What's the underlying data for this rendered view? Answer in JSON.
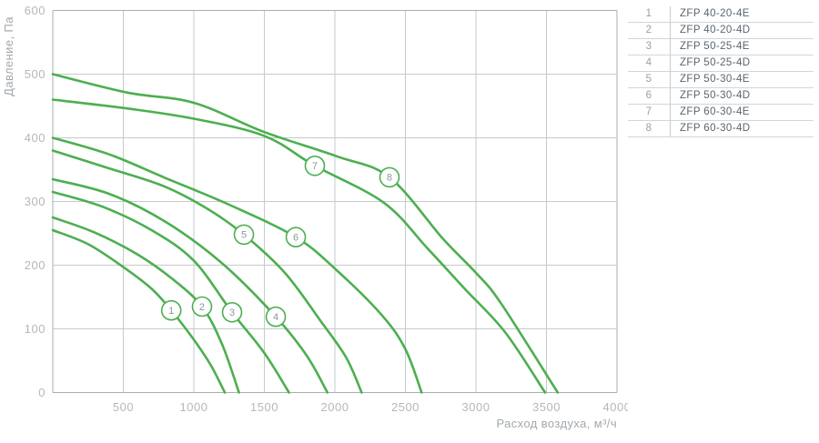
{
  "colors": {
    "curve_green": "#4caf50",
    "grid_line": "#c6c9cb",
    "plot_border": "#aaaeb1",
    "tick_label": "#b3b8bc",
    "axis_title": "#a2a8ad",
    "legend_number": "#98a0a6",
    "legend_model": "#59646d",
    "legend_line": "#d2d6d8"
  },
  "chart_data": {
    "type": "line",
    "title": "",
    "xlabel": "Расход воздуха, м³/ч",
    "ylabel": "Давление, Па",
    "xlim": [
      0,
      4000
    ],
    "ylim": [
      0,
      600
    ],
    "x_ticks": [
      500,
      1000,
      1500,
      2000,
      2500,
      3000,
      3500,
      4000
    ],
    "y_ticks": [
      0,
      100,
      200,
      300,
      400,
      500,
      600
    ],
    "grid": true,
    "legend_position": "right-table",
    "series": [
      {
        "num": "1",
        "name": "ZFP 40-20-4E",
        "points": [
          [
            0,
            255
          ],
          [
            250,
            233
          ],
          [
            500,
            197
          ],
          [
            700,
            163
          ],
          [
            840,
            129
          ],
          [
            1000,
            83
          ],
          [
            1120,
            43
          ],
          [
            1220,
            0
          ]
        ],
        "label_at": [
          840,
          129
        ]
      },
      {
        "num": "2",
        "name": "ZFP 40-20-4D",
        "points": [
          [
            0,
            275
          ],
          [
            300,
            251
          ],
          [
            600,
            217
          ],
          [
            850,
            178
          ],
          [
            1058,
            135
          ],
          [
            1200,
            76
          ],
          [
            1320,
            0
          ]
        ],
        "label_at": [
          1058,
          135
        ]
      },
      {
        "num": "3",
        "name": "ZFP 50-25-4E",
        "points": [
          [
            0,
            315
          ],
          [
            350,
            292
          ],
          [
            700,
            255
          ],
          [
            1000,
            207
          ],
          [
            1271,
            126
          ],
          [
            1500,
            62
          ],
          [
            1675,
            0
          ]
        ],
        "label_at": [
          1271,
          126
        ]
      },
      {
        "num": "4",
        "name": "ZFP 50-25-4D",
        "points": [
          [
            0,
            335
          ],
          [
            400,
            312
          ],
          [
            800,
            268
          ],
          [
            1200,
            203
          ],
          [
            1581,
            119
          ],
          [
            1800,
            58
          ],
          [
            1947,
            0
          ]
        ],
        "label_at": [
          1581,
          119
        ]
      },
      {
        "num": "5",
        "name": "ZFP 50-30-4E",
        "points": [
          [
            0,
            380
          ],
          [
            400,
            352
          ],
          [
            787,
            324
          ],
          [
            1100,
            288
          ],
          [
            1355,
            248
          ],
          [
            1645,
            188
          ],
          [
            1900,
            112
          ],
          [
            2080,
            55
          ],
          [
            2190,
            0
          ]
        ],
        "label_at": [
          1355,
          248
        ]
      },
      {
        "num": "6",
        "name": "ZFP 50-30-4D",
        "points": [
          [
            0,
            400
          ],
          [
            400,
            374
          ],
          [
            787,
            338
          ],
          [
            1250,
            295
          ],
          [
            1723,
            244
          ],
          [
            2013,
            192
          ],
          [
            2335,
            121
          ],
          [
            2500,
            68
          ],
          [
            2615,
            0
          ]
        ],
        "label_at": [
          1723,
          244
        ]
      },
      {
        "num": "7",
        "name": "ZFP 60-30-4E",
        "points": [
          [
            0,
            460
          ],
          [
            530,
            446
          ],
          [
            1000,
            430
          ],
          [
            1500,
            403
          ],
          [
            1858,
            356
          ],
          [
            2348,
            298
          ],
          [
            2658,
            226
          ],
          [
            2916,
            164
          ],
          [
            3206,
            95
          ],
          [
            3490,
            0
          ]
        ],
        "label_at": [
          1858,
          356
        ]
      },
      {
        "num": "8",
        "name": "ZFP 60-30-4D",
        "points": [
          [
            0,
            500
          ],
          [
            530,
            471
          ],
          [
            1000,
            455
          ],
          [
            1500,
            409
          ],
          [
            2013,
            371
          ],
          [
            2387,
            338
          ],
          [
            2768,
            241
          ],
          [
            3000,
            188
          ],
          [
            3175,
            141
          ],
          [
            3580,
            0
          ]
        ],
        "label_at": [
          2387,
          338
        ]
      }
    ]
  },
  "legend": {
    "rows": [
      {
        "num": "1",
        "model": "ZFP 40-20-4E"
      },
      {
        "num": "2",
        "model": "ZFP 40-20-4D"
      },
      {
        "num": "3",
        "model": "ZFP 50-25-4E"
      },
      {
        "num": "4",
        "model": "ZFP 50-25-4D"
      },
      {
        "num": "5",
        "model": "ZFP 50-30-4E"
      },
      {
        "num": "6",
        "model": "ZFP 50-30-4D"
      },
      {
        "num": "7",
        "model": "ZFP 60-30-4E"
      },
      {
        "num": "8",
        "model": "ZFP 60-30-4D"
      }
    ]
  }
}
